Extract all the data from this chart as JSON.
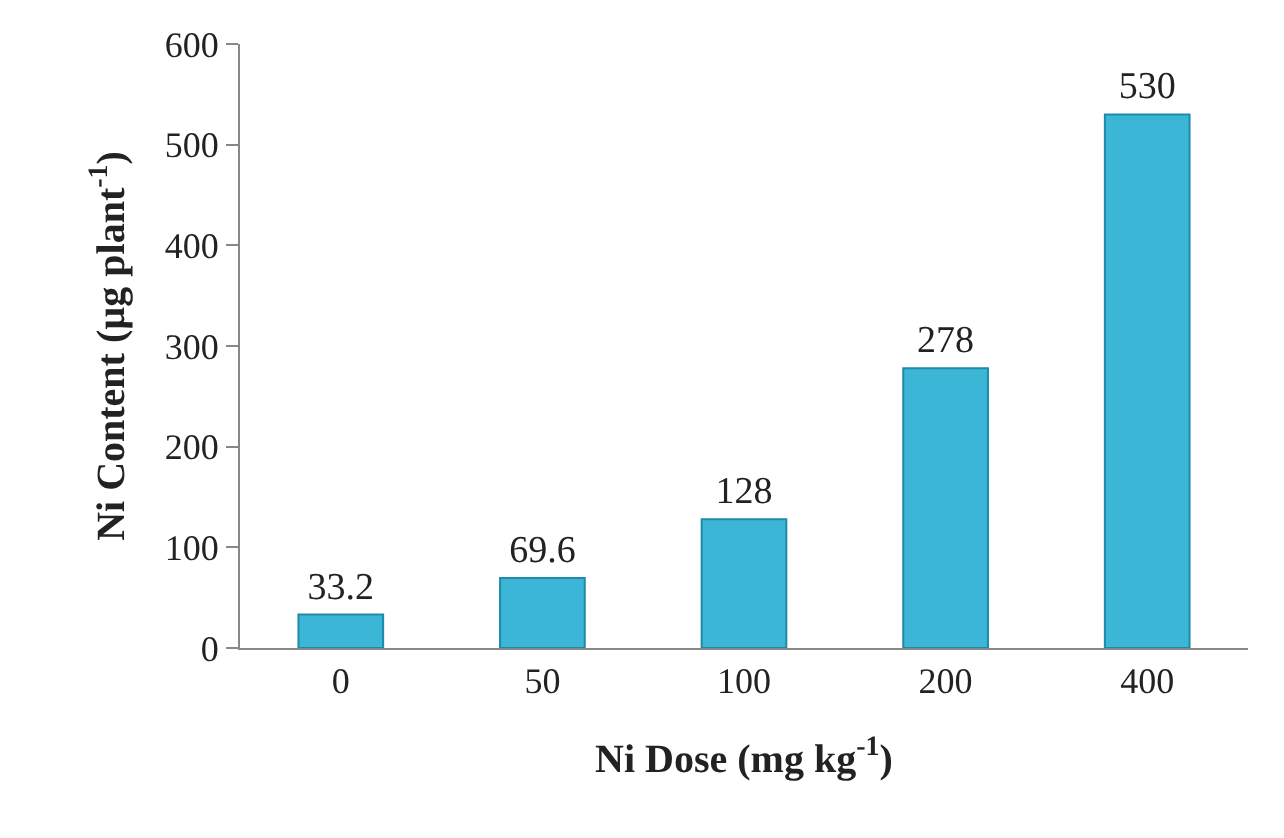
{
  "chart_data": {
    "type": "bar",
    "xlabel": "Ni Dose (mg kg$^{-1}$)",
    "ylabel": "Ni Content (µg plant$^{-1}$)",
    "categories": [
      "0",
      "50",
      "100",
      "200",
      "400"
    ],
    "values": [
      33.2,
      69.6,
      128,
      278,
      530
    ],
    "color": "#3bb6d6",
    "ylim": [
      0,
      600
    ],
    "yticks": [
      0,
      100,
      200,
      300,
      400,
      500,
      600
    ],
    "data_labels": true
  }
}
